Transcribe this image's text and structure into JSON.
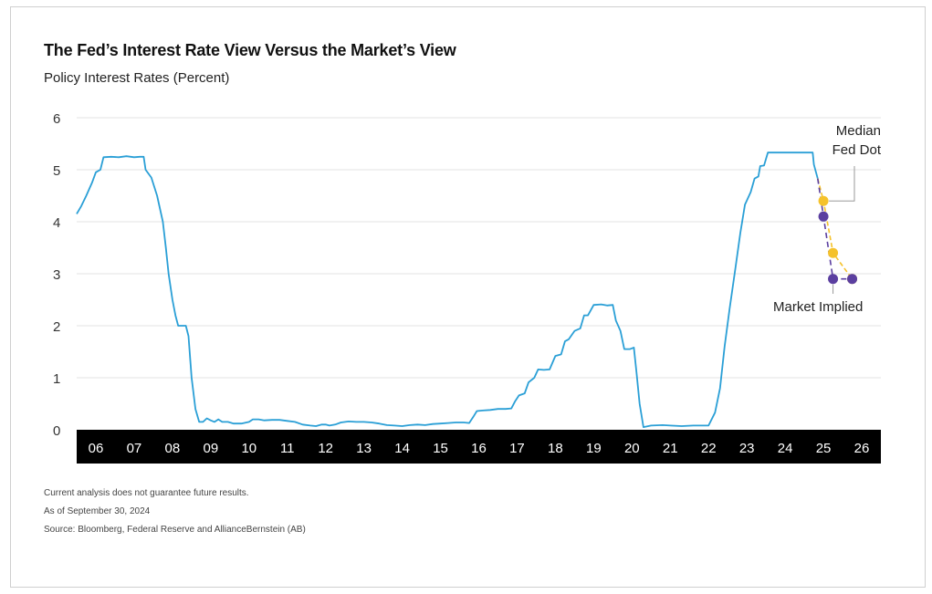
{
  "title": "The Fed’s Interest Rate View Versus the Market’s View",
  "subtitle": "Policy Interest Rates (Percent)",
  "notes": {
    "disclaimer": "Current analysis does not guarantee future results.",
    "as_of": "As of September 30, 2024",
    "source": "Source: Bloomberg, Federal Reserve and AllianceBernstein (AB)"
  },
  "colors": {
    "history_line": "#2a9fd6",
    "median_fed_dot": "#f5c22b",
    "market_implied": "#5b3fa0",
    "axis_band": "#000000",
    "grid": "#e3e3e3"
  },
  "chart_data": {
    "type": "line",
    "title": "The Fed’s Interest Rate View Versus the Market’s View",
    "ylabel": "Policy Interest Rates (Percent)",
    "xlabel": "",
    "ylim": [
      0,
      6
    ],
    "yticks": [
      "0",
      "1",
      "2",
      "3",
      "4",
      "5",
      "6"
    ],
    "xlim": [
      2005.5,
      2026.5
    ],
    "xticks": [
      {
        "value": 2006,
        "label": "06"
      },
      {
        "value": 2007,
        "label": "07"
      },
      {
        "value": 2008,
        "label": "08"
      },
      {
        "value": 2009,
        "label": "09"
      },
      {
        "value": 2010,
        "label": "10"
      },
      {
        "value": 2011,
        "label": "11"
      },
      {
        "value": 2012,
        "label": "12"
      },
      {
        "value": 2013,
        "label": "13"
      },
      {
        "value": 2014,
        "label": "14"
      },
      {
        "value": 2015,
        "label": "15"
      },
      {
        "value": 2016,
        "label": "16"
      },
      {
        "value": 2017,
        "label": "17"
      },
      {
        "value": 2018,
        "label": "18"
      },
      {
        "value": 2019,
        "label": "19"
      },
      {
        "value": 2020,
        "label": "20"
      },
      {
        "value": 2021,
        "label": "21"
      },
      {
        "value": 2022,
        "label": "22"
      },
      {
        "value": 2023,
        "label": "23"
      },
      {
        "value": 2024,
        "label": "24"
      },
      {
        "value": 2025,
        "label": "25"
      },
      {
        "value": 2026,
        "label": "26"
      }
    ],
    "grid": true,
    "series": [
      {
        "role": "history",
        "points": [
          [
            2005.5,
            4.15
          ],
          [
            2005.62,
            4.3
          ],
          [
            2005.75,
            4.5
          ],
          [
            2005.9,
            4.75
          ],
          [
            2006.0,
            4.95
          ],
          [
            2006.12,
            5.0
          ],
          [
            2006.2,
            5.24
          ],
          [
            2006.4,
            5.25
          ],
          [
            2006.6,
            5.24
          ],
          [
            2006.8,
            5.26
          ],
          [
            2007.0,
            5.24
          ],
          [
            2007.15,
            5.25
          ],
          [
            2007.25,
            5.25
          ],
          [
            2007.3,
            5.0
          ],
          [
            2007.45,
            4.85
          ],
          [
            2007.6,
            4.5
          ],
          [
            2007.75,
            4.0
          ],
          [
            2007.83,
            3.5
          ],
          [
            2007.9,
            3.0
          ],
          [
            2008.0,
            2.5
          ],
          [
            2008.08,
            2.2
          ],
          [
            2008.15,
            2.0
          ],
          [
            2008.25,
            2.0
          ],
          [
            2008.35,
            2.0
          ],
          [
            2008.42,
            1.8
          ],
          [
            2008.5,
            1.0
          ],
          [
            2008.6,
            0.4
          ],
          [
            2008.7,
            0.15
          ],
          [
            2008.8,
            0.15
          ],
          [
            2008.9,
            0.22
          ],
          [
            2009.0,
            0.18
          ],
          [
            2009.1,
            0.15
          ],
          [
            2009.2,
            0.2
          ],
          [
            2009.3,
            0.15
          ],
          [
            2009.45,
            0.15
          ],
          [
            2009.6,
            0.12
          ],
          [
            2009.8,
            0.12
          ],
          [
            2010.0,
            0.15
          ],
          [
            2010.1,
            0.2
          ],
          [
            2010.25,
            0.2
          ],
          [
            2010.4,
            0.18
          ],
          [
            2010.6,
            0.19
          ],
          [
            2010.8,
            0.19
          ],
          [
            2011.0,
            0.17
          ],
          [
            2011.2,
            0.15
          ],
          [
            2011.4,
            0.1
          ],
          [
            2011.6,
            0.08
          ],
          [
            2011.75,
            0.07
          ],
          [
            2011.9,
            0.1
          ],
          [
            2012.0,
            0.1
          ],
          [
            2012.1,
            0.08
          ],
          [
            2012.25,
            0.1
          ],
          [
            2012.4,
            0.14
          ],
          [
            2012.6,
            0.16
          ],
          [
            2012.8,
            0.15
          ],
          [
            2013.0,
            0.15
          ],
          [
            2013.2,
            0.14
          ],
          [
            2013.4,
            0.12
          ],
          [
            2013.6,
            0.09
          ],
          [
            2013.8,
            0.08
          ],
          [
            2014.0,
            0.07
          ],
          [
            2014.2,
            0.09
          ],
          [
            2014.4,
            0.1
          ],
          [
            2014.6,
            0.09
          ],
          [
            2014.8,
            0.11
          ],
          [
            2015.0,
            0.12
          ],
          [
            2015.2,
            0.13
          ],
          [
            2015.4,
            0.14
          ],
          [
            2015.6,
            0.14
          ],
          [
            2015.75,
            0.13
          ],
          [
            2015.85,
            0.24
          ],
          [
            2015.95,
            0.36
          ],
          [
            2016.1,
            0.37
          ],
          [
            2016.3,
            0.38
          ],
          [
            2016.5,
            0.4
          ],
          [
            2016.7,
            0.4
          ],
          [
            2016.85,
            0.41
          ],
          [
            2016.95,
            0.55
          ],
          [
            2017.05,
            0.66
          ],
          [
            2017.2,
            0.7
          ],
          [
            2017.3,
            0.91
          ],
          [
            2017.45,
            1.0
          ],
          [
            2017.55,
            1.16
          ],
          [
            2017.7,
            1.15
          ],
          [
            2017.85,
            1.16
          ],
          [
            2018.0,
            1.42
          ],
          [
            2018.15,
            1.45
          ],
          [
            2018.25,
            1.7
          ],
          [
            2018.35,
            1.74
          ],
          [
            2018.5,
            1.9
          ],
          [
            2018.65,
            1.95
          ],
          [
            2018.75,
            2.2
          ],
          [
            2018.85,
            2.2
          ],
          [
            2019.0,
            2.4
          ],
          [
            2019.2,
            2.41
          ],
          [
            2019.35,
            2.39
          ],
          [
            2019.5,
            2.4
          ],
          [
            2019.58,
            2.1
          ],
          [
            2019.7,
            1.9
          ],
          [
            2019.8,
            1.55
          ],
          [
            2019.95,
            1.55
          ],
          [
            2020.05,
            1.58
          ],
          [
            2020.12,
            1.1
          ],
          [
            2020.2,
            0.5
          ],
          [
            2020.3,
            0.05
          ],
          [
            2020.5,
            0.08
          ],
          [
            2020.8,
            0.09
          ],
          [
            2021.0,
            0.08
          ],
          [
            2021.3,
            0.07
          ],
          [
            2021.6,
            0.08
          ],
          [
            2021.8,
            0.08
          ],
          [
            2022.0,
            0.08
          ],
          [
            2022.17,
            0.33
          ],
          [
            2022.3,
            0.8
          ],
          [
            2022.42,
            1.6
          ],
          [
            2022.55,
            2.33
          ],
          [
            2022.7,
            3.1
          ],
          [
            2022.83,
            3.78
          ],
          [
            2022.95,
            4.33
          ],
          [
            2023.1,
            4.57
          ],
          [
            2023.2,
            4.83
          ],
          [
            2023.3,
            4.87
          ],
          [
            2023.35,
            5.07
          ],
          [
            2023.45,
            5.08
          ],
          [
            2023.55,
            5.33
          ],
          [
            2023.8,
            5.33
          ],
          [
            2024.1,
            5.33
          ],
          [
            2024.4,
            5.33
          ],
          [
            2024.6,
            5.33
          ],
          [
            2024.72,
            5.33
          ],
          [
            2024.75,
            5.1
          ],
          [
            2024.85,
            4.83
          ]
        ]
      },
      {
        "name": "Median Fed Dot",
        "role": "fed_dot",
        "points": [
          [
            2024.85,
            4.83
          ],
          [
            2025.0,
            4.4
          ],
          [
            2025.25,
            3.4
          ],
          [
            2025.75,
            2.9
          ]
        ],
        "markers": [
          [
            2025.0,
            4.4
          ],
          [
            2025.25,
            3.4
          ],
          [
            2025.75,
            2.9
          ]
        ]
      },
      {
        "name": "Market Implied",
        "role": "market",
        "points": [
          [
            2024.85,
            4.83
          ],
          [
            2025.0,
            4.1
          ],
          [
            2025.25,
            2.9
          ],
          [
            2025.75,
            2.9
          ]
        ],
        "markers": [
          [
            2025.0,
            4.1
          ],
          [
            2025.25,
            2.9
          ],
          [
            2025.75,
            2.9
          ]
        ]
      }
    ],
    "annotations": [
      {
        "name": "median-fed-dot-label",
        "lines": [
          "Median",
          "Fed Dot"
        ],
        "target": [
          2025.0,
          4.4
        ]
      },
      {
        "name": "market-implied-label",
        "lines": [
          "Market Implied"
        ],
        "target": [
          2025.25,
          2.9
        ]
      }
    ]
  }
}
